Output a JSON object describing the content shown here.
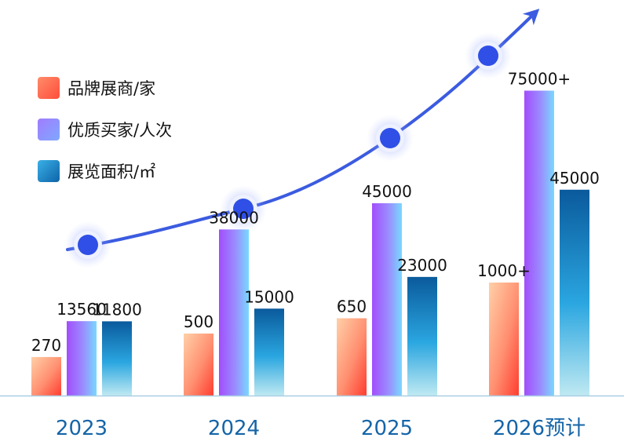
{
  "chart_data": {
    "type": "bar",
    "title": "",
    "xlabel": "",
    "ylabel": "",
    "categories": [
      "2023",
      "2024",
      "2025",
      "2026预计"
    ],
    "series": [
      {
        "name": "品牌展商/家",
        "values": [
          270,
          500,
          650,
          1000
        ],
        "labels": [
          "270",
          "500",
          "650",
          "1000+"
        ],
        "color": "#ff5a45"
      },
      {
        "name": "优质买家/人次",
        "values": [
          13560,
          38000,
          45000,
          75000
        ],
        "labels": [
          "13560",
          "38000",
          "45000",
          "75000+"
        ],
        "color": "#9a7bff"
      },
      {
        "name": "展览面积/㎡",
        "values": [
          11800,
          15000,
          23000,
          45000
        ],
        "labels": [
          "11800",
          "15000",
          "23000",
          "45000"
        ],
        "color": "#1a7fc4"
      }
    ],
    "trend": {
      "type": "line",
      "direction": "upward",
      "markers": 4,
      "color": "#3b5be0"
    },
    "legend_position": "top-left",
    "grid": false
  }
}
